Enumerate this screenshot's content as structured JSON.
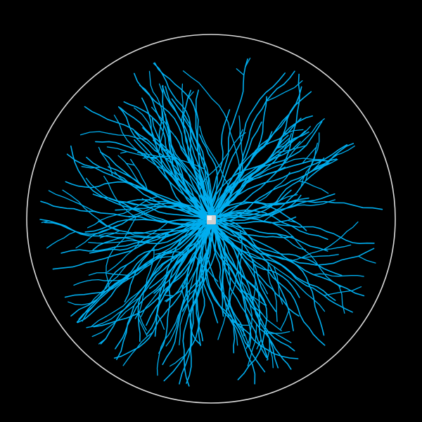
{
  "scene": {
    "background_color": "#000000",
    "boundary_color": "#d9d9d9",
    "branch_color": "#00aeef",
    "seed_color": "#cfcfcf",
    "seed_highlight_color": "#f2f2f2",
    "boundary_shape": "circle",
    "seed_shape": "square",
    "branch_count": 140
  }
}
